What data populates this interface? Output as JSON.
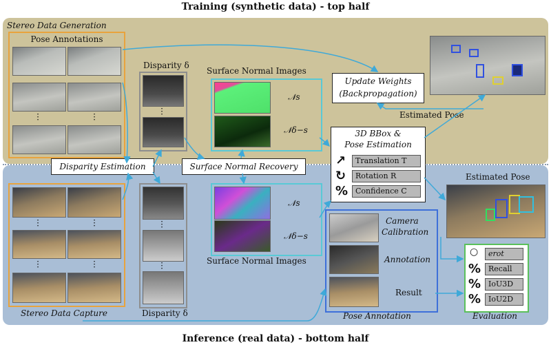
{
  "titles": {
    "top": "Training (synthetic data) - top half",
    "bottom": "Inference (real data) - bottom half"
  },
  "top": {
    "stereo_data_generation": "Stereo Data Generation",
    "pose_annotations": "Pose Annotations",
    "disparity": "Disparity δ",
    "surface_normal_images": "Surface Normal Images",
    "n_s": "𝒩s",
    "n_delta_s": "𝒩δ−s",
    "update_weights_line1": "Update Weights",
    "update_weights_line2": "(Backpropagation)",
    "estimated_pose": "Estimated Pose"
  },
  "middle": {
    "disparity_estimation": "Disparity Estimation",
    "surface_normal_recovery": "Surface Normal Recovery",
    "bbox_title_line1": "3D BBox &",
    "bbox_title_line2": "Pose Estimation",
    "translation": "Translation T",
    "rotation": "Rotation R",
    "confidence": "Confidence C"
  },
  "bottom": {
    "estimated_pose": "Estimated Pose",
    "stereo_data_capture": "Stereo Data Capture",
    "disparity": "Disparity δ",
    "surface_normal_images": "Surface Normal Images",
    "n_s": "𝒩s",
    "n_delta_s": "𝒩δ−s",
    "camera_calibration_line1": "Camera",
    "camera_calibration_line2": "Calibration",
    "annotation": "Annotation",
    "result": "Result",
    "pose_annotation": "Pose Annotation",
    "evaluation": "Evaluation",
    "metrics": [
      "erot",
      "Recall",
      "IoU3D",
      "IoU2D"
    ]
  },
  "icons": {
    "arrow": "↗",
    "rotation": "↻",
    "percent": "%",
    "circle": "○"
  },
  "colors": {
    "top_panel": "#cdc39b",
    "bottom_panel": "#a9bed6",
    "arrow": "#3fa9d8",
    "orange": "#e8a33d",
    "cyan": "#59c9d6",
    "blue": "#3d6fd9",
    "green": "#5ac05a"
  }
}
